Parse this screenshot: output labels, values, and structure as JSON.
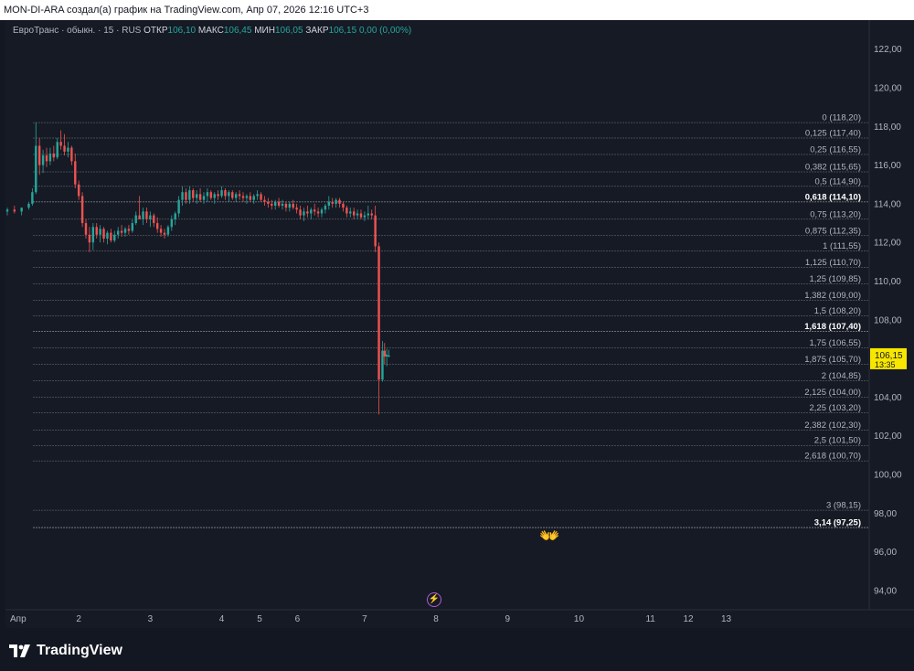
{
  "header": {
    "caption": "MON-DI-ARA создал(а) график на TradingView.com, Апр 07, 2026 12:16 UTC+3"
  },
  "legend": {
    "symbol": "ЕвроТранс · обыкн. · 15 · RUS",
    "open_label": "ОТКР",
    "open_value": "106,10",
    "high_label": "МАКС",
    "high_value": "106,45",
    "low_label": "МИН",
    "low_value": "106,05",
    "close_label": "ЗАКР",
    "close_value": "106,15",
    "change": "0,00 (0,00%)"
  },
  "price_badge": {
    "price": "106,15",
    "countdown": "13:35",
    "color": "#f7e600"
  },
  "colors": {
    "up": "#26a69a",
    "down": "#ef5350",
    "background": "#161a25",
    "grid": "#2a2e39",
    "fib_line": "#9598a1"
  },
  "icons": {
    "hands": "open-hands-emoji",
    "bolt": "lightning-icon",
    "logo": "tradingview-logo-icon"
  },
  "brand": {
    "name": "TradingView"
  },
  "chart_data": {
    "type": "candlestick",
    "y_axis": {
      "range": [
        93,
        123.5
      ],
      "ticks": [
        {
          "value": 122,
          "label": "122,00"
        },
        {
          "value": 120,
          "label": "120,00"
        },
        {
          "value": 118,
          "label": "118,00"
        },
        {
          "value": 116,
          "label": "116,00"
        },
        {
          "value": 114,
          "label": "114,00"
        },
        {
          "value": 112,
          "label": "112,00"
        },
        {
          "value": 110,
          "label": "110,00"
        },
        {
          "value": 108,
          "label": "108,00"
        },
        {
          "value": 106,
          "label": "106,00"
        },
        {
          "value": 104,
          "label": "104,00"
        },
        {
          "value": 102,
          "label": "102,00"
        },
        {
          "value": 100,
          "label": "100,00"
        },
        {
          "value": 98,
          "label": "98,00"
        },
        {
          "value": 96,
          "label": "96,00"
        },
        {
          "value": 94,
          "label": "94,00"
        }
      ]
    },
    "x_axis": {
      "range": [
        0,
        11
      ],
      "ticks": [
        {
          "t": 0,
          "label": "Апр"
        },
        {
          "t": 1,
          "label": "2"
        },
        {
          "t": 2,
          "label": "3"
        },
        {
          "t": 3,
          "label": "4"
        },
        {
          "t": 3.53,
          "label": "5"
        },
        {
          "t": 4.06,
          "label": "6"
        },
        {
          "t": 5,
          "label": "7"
        },
        {
          "t": 6,
          "label": "8"
        },
        {
          "t": 7,
          "label": "9"
        },
        {
          "t": 8,
          "label": "10"
        },
        {
          "t": 9,
          "label": "11"
        },
        {
          "t": 9.53,
          "label": "12"
        },
        {
          "t": 10.06,
          "label": "13"
        }
      ]
    },
    "fibonacci": [
      {
        "ratio": "0",
        "price": 118.2,
        "label": "0 (118,20)",
        "bold": false
      },
      {
        "ratio": "0,125",
        "price": 117.4,
        "label": "0,125 (117,40)",
        "bold": false
      },
      {
        "ratio": "0,25",
        "price": 116.55,
        "label": "0,25 (116,55)",
        "bold": false
      },
      {
        "ratio": "0,382",
        "price": 115.65,
        "label": "0,382 (115,65)",
        "bold": false
      },
      {
        "ratio": "0,5",
        "price": 114.9,
        "label": "0,5 (114,90)",
        "bold": false
      },
      {
        "ratio": "0,618",
        "price": 114.1,
        "label": "0,618 (114,10)",
        "bold": true
      },
      {
        "ratio": "0,75",
        "price": 113.2,
        "label": "0,75 (113,20)",
        "bold": false
      },
      {
        "ratio": "0,875",
        "price": 112.35,
        "label": "0,875 (112,35)",
        "bold": false
      },
      {
        "ratio": "1",
        "price": 111.55,
        "label": "1 (111,55)",
        "bold": false
      },
      {
        "ratio": "1,125",
        "price": 110.7,
        "label": "1,125 (110,70)",
        "bold": false
      },
      {
        "ratio": "1,25",
        "price": 109.85,
        "label": "1,25 (109,85)",
        "bold": false
      },
      {
        "ratio": "1,382",
        "price": 109.0,
        "label": "1,382 (109,00)",
        "bold": false
      },
      {
        "ratio": "1,5",
        "price": 108.2,
        "label": "1,5 (108,20)",
        "bold": false
      },
      {
        "ratio": "1,618",
        "price": 107.4,
        "label": "1,618 (107,40)",
        "bold": true
      },
      {
        "ratio": "1,75",
        "price": 106.55,
        "label": "1,75 (106,55)",
        "bold": false
      },
      {
        "ratio": "1,875",
        "price": 105.7,
        "label": "1,875 (105,70)",
        "bold": false
      },
      {
        "ratio": "2",
        "price": 104.85,
        "label": "2 (104,85)",
        "bold": false
      },
      {
        "ratio": "2,125",
        "price": 104.0,
        "label": "2,125 (104,00)",
        "bold": false
      },
      {
        "ratio": "2,25",
        "price": 103.2,
        "label": "2,25 (103,20)",
        "bold": false
      },
      {
        "ratio": "2,382",
        "price": 102.3,
        "label": "2,382 (102,30)",
        "bold": false
      },
      {
        "ratio": "2,5",
        "price": 101.5,
        "label": "2,5 (101,50)",
        "bold": false
      },
      {
        "ratio": "2,618",
        "price": 100.7,
        "label": "2,618 (100,70)",
        "bold": false
      },
      {
        "ratio": "3",
        "price": 98.15,
        "label": "3 (98,15)",
        "bold": false
      },
      {
        "ratio": "3,14",
        "price": 97.25,
        "label": "3,14 (97,25)",
        "bold": true
      }
    ],
    "series": [
      {
        "t": 0.0,
        "o": 113.6,
        "h": 113.8,
        "l": 113.4,
        "c": 113.7
      },
      {
        "t": 0.1,
        "o": 113.7,
        "h": 113.9,
        "l": 113.5,
        "c": 113.6
      },
      {
        "t": 0.2,
        "o": 113.6,
        "h": 113.8,
        "l": 113.4,
        "c": 113.8
      },
      {
        "t": 0.3,
        "o": 113.8,
        "h": 114.1,
        "l": 113.7,
        "c": 114.0
      },
      {
        "t": 0.35,
        "o": 114.0,
        "h": 114.8,
        "l": 113.9,
        "c": 114.6
      },
      {
        "t": 0.4,
        "o": 114.6,
        "h": 118.2,
        "l": 114.5,
        "c": 117.0
      },
      {
        "t": 0.45,
        "o": 117.0,
        "h": 117.4,
        "l": 115.5,
        "c": 116.0
      },
      {
        "t": 0.5,
        "o": 116.0,
        "h": 116.8,
        "l": 115.6,
        "c": 116.5
      },
      {
        "t": 0.55,
        "o": 116.5,
        "h": 116.9,
        "l": 115.9,
        "c": 116.2
      },
      {
        "t": 0.6,
        "o": 116.2,
        "h": 116.9,
        "l": 116.0,
        "c": 116.6
      },
      {
        "t": 0.65,
        "o": 116.6,
        "h": 117.0,
        "l": 116.2,
        "c": 116.4
      },
      {
        "t": 0.7,
        "o": 116.4,
        "h": 117.4,
        "l": 116.3,
        "c": 117.2
      },
      {
        "t": 0.75,
        "o": 117.2,
        "h": 117.8,
        "l": 116.8,
        "c": 117.0
      },
      {
        "t": 0.8,
        "o": 117.0,
        "h": 117.6,
        "l": 116.5,
        "c": 116.7
      },
      {
        "t": 0.85,
        "o": 116.7,
        "h": 117.2,
        "l": 116.4,
        "c": 116.9
      },
      {
        "t": 0.9,
        "o": 116.9,
        "h": 117.0,
        "l": 116.0,
        "c": 116.2
      },
      {
        "t": 0.95,
        "o": 116.2,
        "h": 116.6,
        "l": 114.8,
        "c": 115.0
      },
      {
        "t": 1.0,
        "o": 115.0,
        "h": 115.2,
        "l": 114.2,
        "c": 114.4
      },
      {
        "t": 1.05,
        "o": 114.4,
        "h": 114.6,
        "l": 112.8,
        "c": 113.0
      },
      {
        "t": 1.1,
        "o": 113.0,
        "h": 113.2,
        "l": 112.2,
        "c": 112.4
      },
      {
        "t": 1.15,
        "o": 112.4,
        "h": 112.8,
        "l": 111.5,
        "c": 112.0
      },
      {
        "t": 1.2,
        "o": 112.0,
        "h": 113.0,
        "l": 111.6,
        "c": 112.8
      },
      {
        "t": 1.25,
        "o": 112.8,
        "h": 113.0,
        "l": 112.2,
        "c": 112.4
      },
      {
        "t": 1.3,
        "o": 112.4,
        "h": 112.9,
        "l": 112.0,
        "c": 112.7
      },
      {
        "t": 1.35,
        "o": 112.7,
        "h": 112.8,
        "l": 112.0,
        "c": 112.2
      },
      {
        "t": 1.4,
        "o": 112.2,
        "h": 112.6,
        "l": 111.9,
        "c": 112.5
      },
      {
        "t": 1.45,
        "o": 112.5,
        "h": 112.7,
        "l": 112.0,
        "c": 112.1
      },
      {
        "t": 1.5,
        "o": 112.1,
        "h": 112.6,
        "l": 112.0,
        "c": 112.4
      },
      {
        "t": 1.55,
        "o": 112.4,
        "h": 112.8,
        "l": 112.2,
        "c": 112.6
      },
      {
        "t": 1.6,
        "o": 112.6,
        "h": 112.9,
        "l": 112.3,
        "c": 112.5
      },
      {
        "t": 1.65,
        "o": 112.5,
        "h": 112.8,
        "l": 112.3,
        "c": 112.7
      },
      {
        "t": 1.7,
        "o": 112.7,
        "h": 112.9,
        "l": 112.4,
        "c": 112.6
      },
      {
        "t": 1.75,
        "o": 112.6,
        "h": 113.2,
        "l": 112.5,
        "c": 113.0
      },
      {
        "t": 1.8,
        "o": 113.0,
        "h": 113.6,
        "l": 112.9,
        "c": 113.4
      },
      {
        "t": 1.85,
        "o": 113.4,
        "h": 114.4,
        "l": 113.3,
        "c": 113.2
      },
      {
        "t": 1.9,
        "o": 113.2,
        "h": 113.8,
        "l": 112.9,
        "c": 113.6
      },
      {
        "t": 1.95,
        "o": 113.6,
        "h": 113.8,
        "l": 113.0,
        "c": 113.2
      },
      {
        "t": 2.0,
        "o": 113.2,
        "h": 113.6,
        "l": 112.8,
        "c": 113.4
      },
      {
        "t": 2.05,
        "o": 113.4,
        "h": 113.5,
        "l": 112.8,
        "c": 113.0
      },
      {
        "t": 2.1,
        "o": 113.0,
        "h": 113.3,
        "l": 112.5,
        "c": 112.7
      },
      {
        "t": 2.15,
        "o": 112.7,
        "h": 112.9,
        "l": 112.3,
        "c": 112.5
      },
      {
        "t": 2.2,
        "o": 112.5,
        "h": 112.7,
        "l": 112.2,
        "c": 112.4
      },
      {
        "t": 2.25,
        "o": 112.4,
        "h": 112.9,
        "l": 112.3,
        "c": 112.8
      },
      {
        "t": 2.3,
        "o": 112.8,
        "h": 113.4,
        "l": 112.6,
        "c": 113.2
      },
      {
        "t": 2.35,
        "o": 113.2,
        "h": 113.6,
        "l": 112.9,
        "c": 113.5
      },
      {
        "t": 2.4,
        "o": 113.5,
        "h": 114.4,
        "l": 113.3,
        "c": 114.2
      },
      {
        "t": 2.45,
        "o": 114.2,
        "h": 114.9,
        "l": 113.9,
        "c": 114.6
      },
      {
        "t": 2.5,
        "o": 114.6,
        "h": 114.8,
        "l": 114.0,
        "c": 114.2
      },
      {
        "t": 2.55,
        "o": 114.2,
        "h": 114.9,
        "l": 114.0,
        "c": 114.7
      },
      {
        "t": 2.6,
        "o": 114.7,
        "h": 114.8,
        "l": 114.1,
        "c": 114.3
      },
      {
        "t": 2.65,
        "o": 114.3,
        "h": 114.7,
        "l": 114.0,
        "c": 114.5
      },
      {
        "t": 2.7,
        "o": 114.5,
        "h": 114.8,
        "l": 114.1,
        "c": 114.2
      },
      {
        "t": 2.75,
        "o": 114.2,
        "h": 114.6,
        "l": 114.0,
        "c": 114.4
      },
      {
        "t": 2.8,
        "o": 114.4,
        "h": 114.8,
        "l": 114.1,
        "c": 114.6
      },
      {
        "t": 2.85,
        "o": 114.6,
        "h": 114.7,
        "l": 114.2,
        "c": 114.3
      },
      {
        "t": 2.9,
        "o": 114.3,
        "h": 114.6,
        "l": 114.0,
        "c": 114.5
      },
      {
        "t": 2.95,
        "o": 114.5,
        "h": 114.7,
        "l": 114.2,
        "c": 114.4
      },
      {
        "t": 3.0,
        "o": 114.4,
        "h": 114.9,
        "l": 114.3,
        "c": 114.7
      },
      {
        "t": 3.05,
        "o": 114.7,
        "h": 114.8,
        "l": 114.2,
        "c": 114.4
      },
      {
        "t": 3.1,
        "o": 114.4,
        "h": 114.7,
        "l": 114.1,
        "c": 114.6
      },
      {
        "t": 3.15,
        "o": 114.6,
        "h": 114.7,
        "l": 114.2,
        "c": 114.3
      },
      {
        "t": 3.2,
        "o": 114.3,
        "h": 114.6,
        "l": 114.1,
        "c": 114.5
      },
      {
        "t": 3.25,
        "o": 114.5,
        "h": 114.7,
        "l": 114.2,
        "c": 114.4
      },
      {
        "t": 3.3,
        "o": 114.4,
        "h": 114.6,
        "l": 114.1,
        "c": 114.3
      },
      {
        "t": 3.35,
        "o": 114.3,
        "h": 114.5,
        "l": 114.0,
        "c": 114.4
      },
      {
        "t": 3.4,
        "o": 114.4,
        "h": 114.6,
        "l": 114.1,
        "c": 114.2
      },
      {
        "t": 3.45,
        "o": 114.2,
        "h": 114.5,
        "l": 114.0,
        "c": 114.4
      },
      {
        "t": 3.5,
        "o": 114.4,
        "h": 114.7,
        "l": 114.2,
        "c": 114.5
      },
      {
        "t": 3.55,
        "o": 114.5,
        "h": 114.6,
        "l": 114.1,
        "c": 114.2
      },
      {
        "t": 3.6,
        "o": 114.2,
        "h": 114.4,
        "l": 113.9,
        "c": 114.1
      },
      {
        "t": 3.65,
        "o": 114.1,
        "h": 114.3,
        "l": 113.8,
        "c": 114.0
      },
      {
        "t": 3.7,
        "o": 114.0,
        "h": 114.2,
        "l": 113.7,
        "c": 113.9
      },
      {
        "t": 3.75,
        "o": 113.9,
        "h": 114.2,
        "l": 113.7,
        "c": 114.1
      },
      {
        "t": 3.8,
        "o": 114.1,
        "h": 114.3,
        "l": 113.8,
        "c": 113.9
      },
      {
        "t": 3.85,
        "o": 113.9,
        "h": 114.2,
        "l": 113.7,
        "c": 114.0
      },
      {
        "t": 3.9,
        "o": 114.0,
        "h": 114.1,
        "l": 113.6,
        "c": 113.8
      },
      {
        "t": 3.95,
        "o": 113.8,
        "h": 114.1,
        "l": 113.6,
        "c": 114.0
      },
      {
        "t": 4.0,
        "o": 114.0,
        "h": 114.2,
        "l": 113.7,
        "c": 113.8
      },
      {
        "t": 4.05,
        "o": 113.8,
        "h": 114.0,
        "l": 113.5,
        "c": 113.7
      },
      {
        "t": 4.1,
        "o": 113.7,
        "h": 113.9,
        "l": 113.2,
        "c": 113.4
      },
      {
        "t": 4.15,
        "o": 113.4,
        "h": 113.8,
        "l": 113.1,
        "c": 113.6
      },
      {
        "t": 4.2,
        "o": 113.6,
        "h": 113.9,
        "l": 113.3,
        "c": 113.5
      },
      {
        "t": 4.25,
        "o": 113.5,
        "h": 113.8,
        "l": 113.2,
        "c": 113.7
      },
      {
        "t": 4.3,
        "o": 113.7,
        "h": 114.0,
        "l": 113.4,
        "c": 113.6
      },
      {
        "t": 4.35,
        "o": 113.6,
        "h": 113.8,
        "l": 113.3,
        "c": 113.5
      },
      {
        "t": 4.4,
        "o": 113.5,
        "h": 113.8,
        "l": 113.3,
        "c": 113.7
      },
      {
        "t": 4.45,
        "o": 113.7,
        "h": 114.0,
        "l": 113.5,
        "c": 113.9
      },
      {
        "t": 4.5,
        "o": 113.9,
        "h": 114.4,
        "l": 113.7,
        "c": 114.1
      },
      {
        "t": 4.55,
        "o": 114.1,
        "h": 114.3,
        "l": 113.8,
        "c": 114.0
      },
      {
        "t": 4.6,
        "o": 114.0,
        "h": 114.3,
        "l": 113.8,
        "c": 114.2
      },
      {
        "t": 4.65,
        "o": 114.2,
        "h": 114.3,
        "l": 113.8,
        "c": 114.0
      },
      {
        "t": 4.7,
        "o": 114.0,
        "h": 114.1,
        "l": 113.6,
        "c": 113.8
      },
      {
        "t": 4.75,
        "o": 113.8,
        "h": 113.9,
        "l": 113.3,
        "c": 113.5
      },
      {
        "t": 4.8,
        "o": 113.5,
        "h": 113.8,
        "l": 113.3,
        "c": 113.6
      },
      {
        "t": 4.85,
        "o": 113.6,
        "h": 113.8,
        "l": 113.2,
        "c": 113.4
      },
      {
        "t": 4.9,
        "o": 113.4,
        "h": 113.7,
        "l": 113.2,
        "c": 113.5
      },
      {
        "t": 4.95,
        "o": 113.5,
        "h": 113.7,
        "l": 113.2,
        "c": 113.3
      },
      {
        "t": 5.0,
        "o": 113.3,
        "h": 113.6,
        "l": 113.1,
        "c": 113.4
      },
      {
        "t": 5.05,
        "o": 113.4,
        "h": 113.9,
        "l": 113.2,
        "c": 113.5
      },
      {
        "t": 5.1,
        "o": 113.5,
        "h": 113.7,
        "l": 113.2,
        "c": 113.4
      },
      {
        "t": 5.15,
        "o": 113.4,
        "h": 113.9,
        "l": 111.5,
        "c": 111.8
      },
      {
        "t": 5.2,
        "o": 111.8,
        "h": 112.0,
        "l": 103.1,
        "c": 104.9
      },
      {
        "t": 5.25,
        "o": 104.9,
        "h": 106.9,
        "l": 104.8,
        "c": 106.4
      },
      {
        "t": 5.28,
        "o": 106.4,
        "h": 106.8,
        "l": 105.7,
        "c": 106.1
      },
      {
        "t": 5.31,
        "o": 106.1,
        "h": 106.5,
        "l": 105.6,
        "c": 106.2
      },
      {
        "t": 5.34,
        "o": 106.1,
        "h": 106.45,
        "l": 106.05,
        "c": 106.15
      }
    ]
  }
}
